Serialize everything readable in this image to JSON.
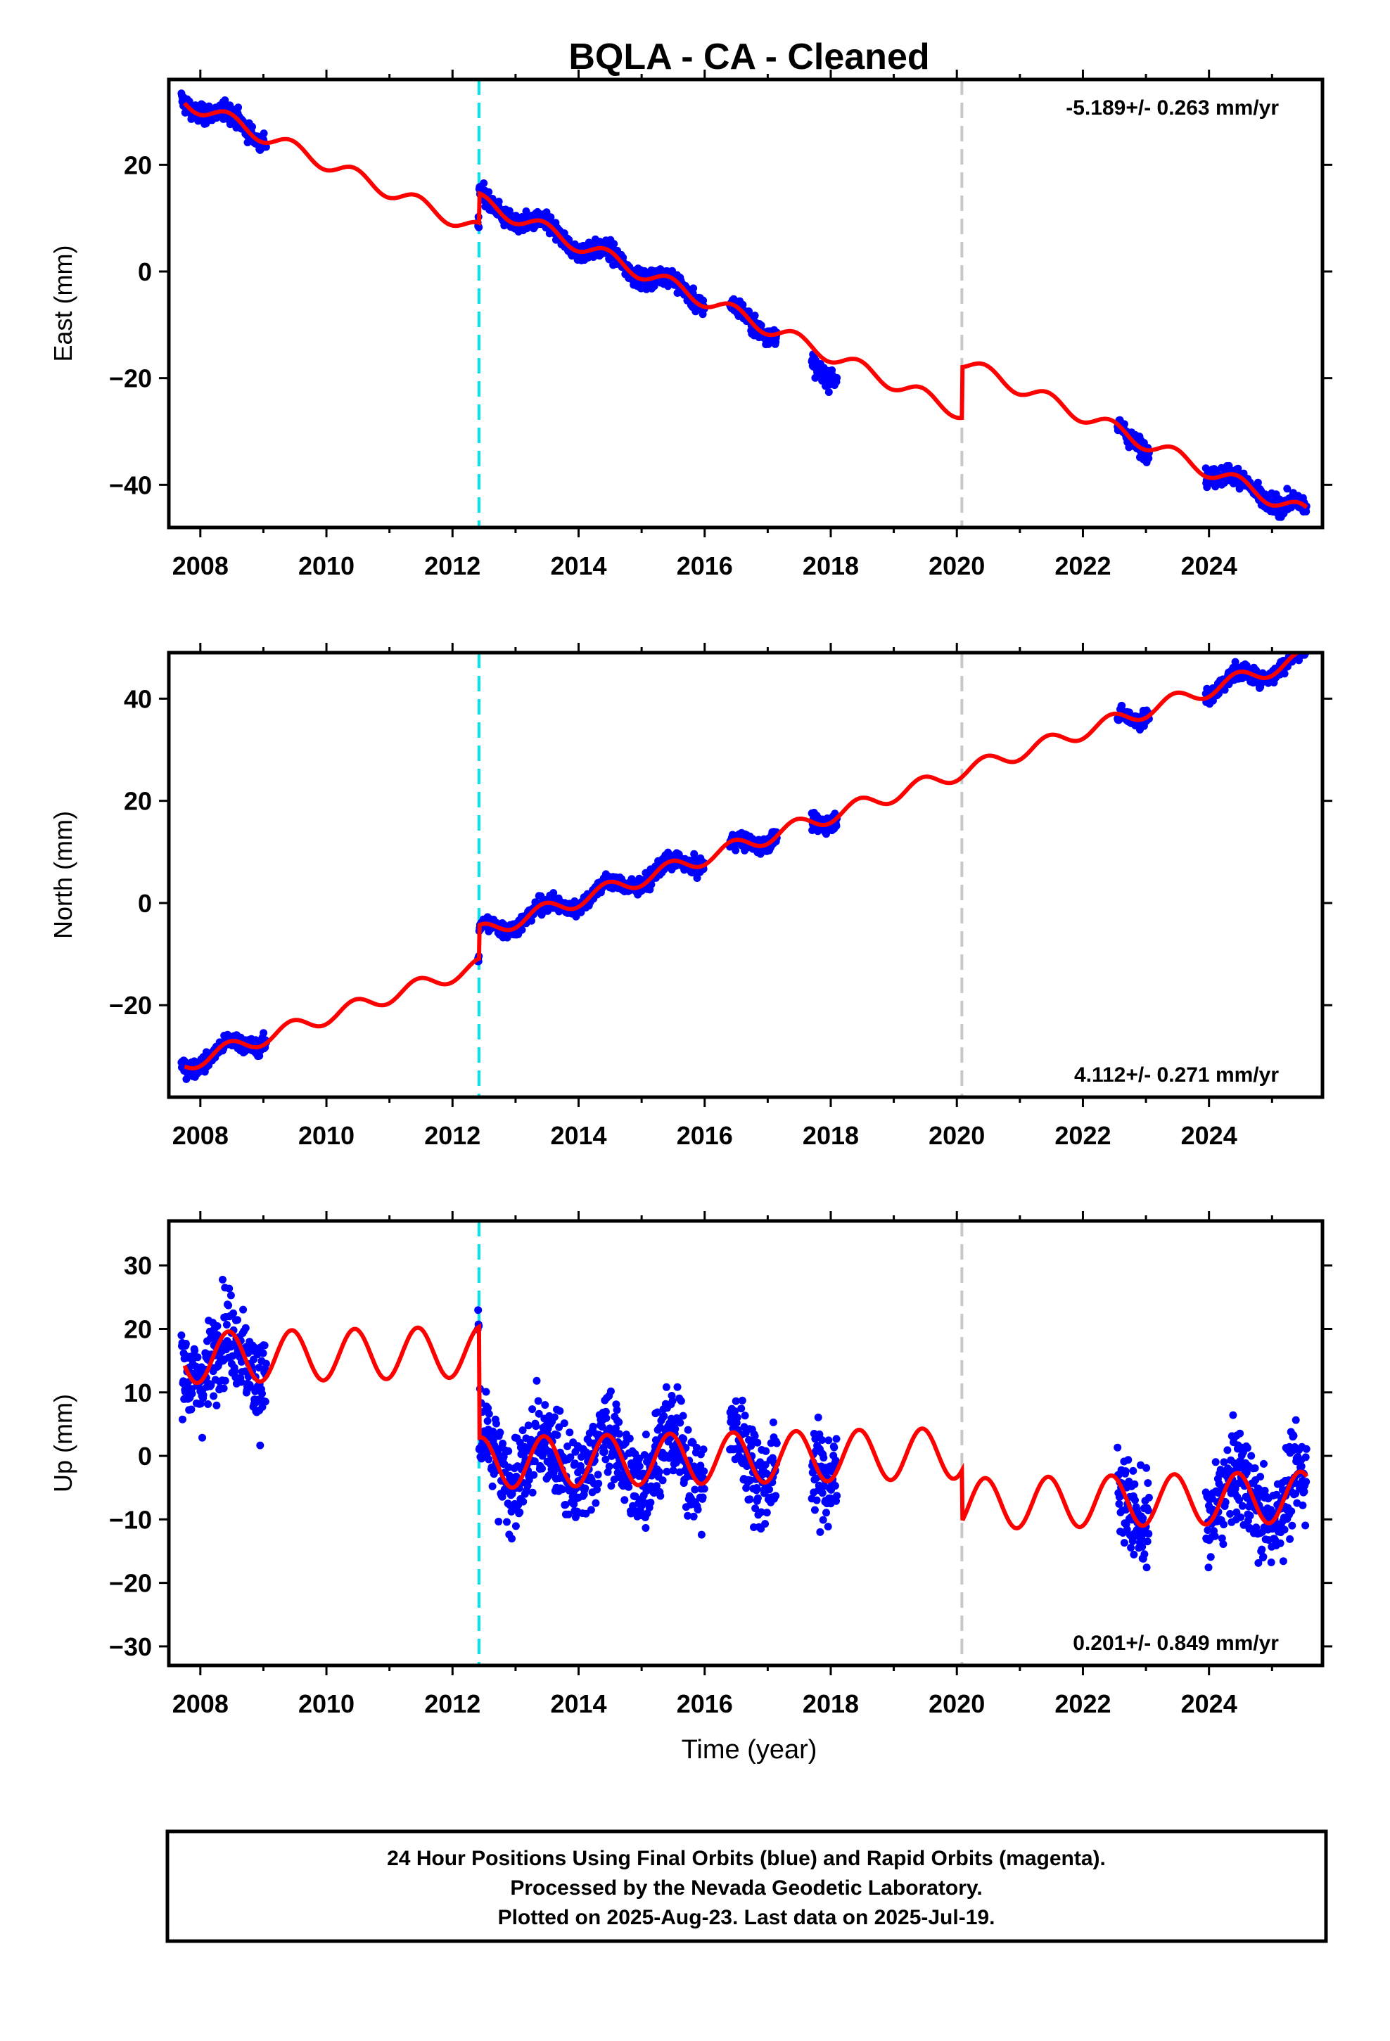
{
  "chart_data": {
    "type": "scatter",
    "title": "BQLA  - CA - Cleaned",
    "xlabel": "Time (year)",
    "xlim": [
      2007.5,
      2025.8
    ],
    "x_ticks": [
      "2008",
      "2010",
      "2012",
      "2014",
      "2016",
      "2018",
      "2020",
      "2022",
      "2024"
    ],
    "colors": {
      "data": "#0000ff",
      "model": "#ff0000",
      "break_antenna": "#00e5ee",
      "break_other": "#c8c8c8"
    },
    "vertical_lines": [
      {
        "x": 2012.42,
        "color": "cyan",
        "style": "dashed"
      },
      {
        "x": 2020.08,
        "color": "gray",
        "style": "dashed"
      }
    ],
    "data_segments": [
      [
        2007.7,
        2009.05
      ],
      [
        2012.4,
        2016.0
      ],
      [
        2016.4,
        2017.15
      ],
      [
        2017.7,
        2018.1
      ],
      [
        2022.55,
        2023.05
      ],
      [
        2023.95,
        2025.55
      ]
    ],
    "panels": [
      {
        "ylabel": "East (mm)",
        "ylim": [
          -48,
          36
        ],
        "yticks": [
          "−40",
          "−20",
          "0",
          "20"
        ],
        "rate_text": "-5.189+/- 0.263 mm/yr",
        "rate_position": "top-right",
        "rate": -5.189,
        "rate_err": 0.263,
        "intercept_2008": 30.7,
        "seasonal_amp": 1.4,
        "step_offsets": [
          [
            2012.42,
            5.5
          ],
          [
            2020.08,
            9.5
          ]
        ],
        "scatter_sd": 1.2,
        "extra_segment_offsets": [
          [
            2017.7,
            2018.1,
            -3
          ]
        ]
      },
      {
        "ylabel": "North (mm)",
        "ylim": [
          -38,
          49
        ],
        "yticks": [
          "−20",
          "0",
          "20",
          "40"
        ],
        "rate_text": "4.112+/- 0.271 mm/yr",
        "rate_position": "bottom-right",
        "rate": 4.112,
        "rate_err": 0.271,
        "intercept_2008": -30.5,
        "seasonal_amp": 1.5,
        "step_offsets": [
          [
            2012.42,
            6.5
          ]
        ],
        "scatter_sd": 1.1,
        "extra_segment_offsets": []
      },
      {
        "ylabel": "Up (mm)",
        "ylim": [
          -33,
          37
        ],
        "yticks": [
          "−30",
          "−20",
          "−10",
          "0",
          "10",
          "20",
          "30"
        ],
        "rate_text": "0.201+/- 0.849 mm/yr",
        "rate_position": "bottom-right",
        "rate": 0.201,
        "rate_err": 0.849,
        "intercept_2008": 15.5,
        "seasonal_amp": 4.0,
        "step_offsets": [
          [
            2012.42,
            -17.5
          ],
          [
            2020.08,
            -8.0
          ]
        ],
        "scatter_sd": 5.0,
        "extra_segment_offsets": []
      }
    ]
  },
  "footer": {
    "line1": "24 Hour Positions Using Final Orbits (blue) and Rapid Orbits (magenta).",
    "line2": "Processed by the Nevada Geodetic Laboratory.",
    "line3": "Plotted on 2025-Aug-23. Last data on 2025-Jul-19."
  }
}
